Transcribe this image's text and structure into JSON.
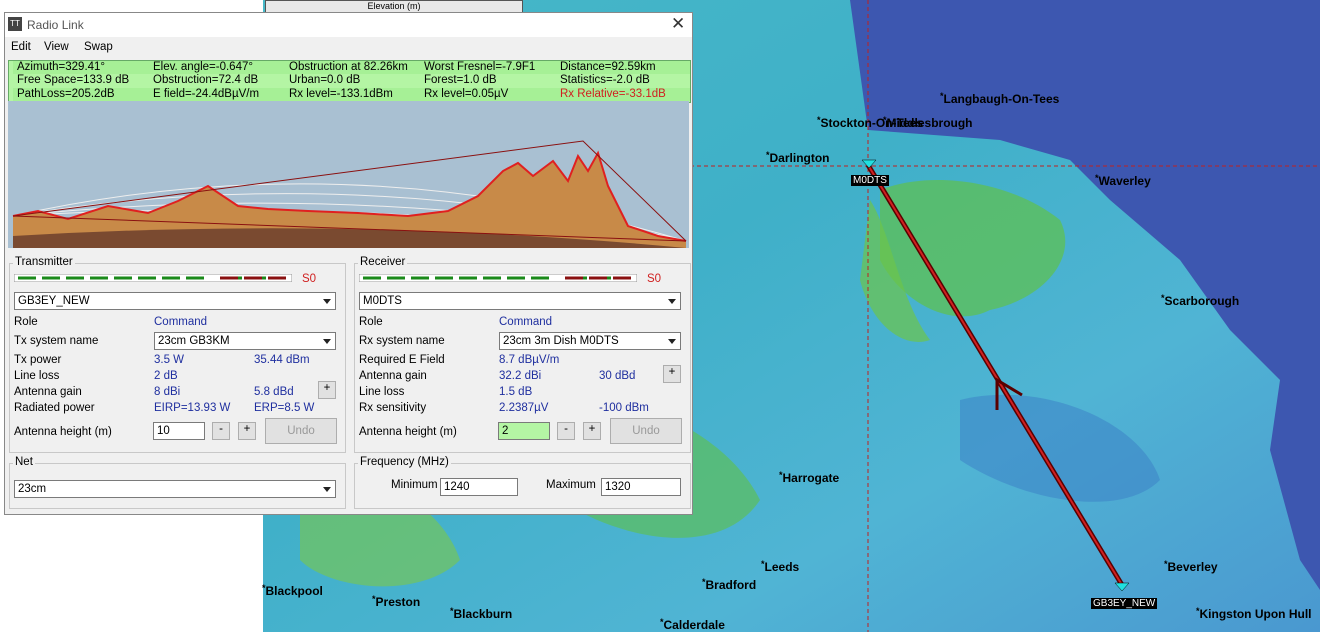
{
  "elevation_tab": "Elevation (m)",
  "window": {
    "title": "Radio Link",
    "menu": [
      "Edit",
      "View",
      "Swap"
    ]
  },
  "stats": [
    [
      "Azimuth=329.41°",
      "Elev. angle=-0.647°",
      "Obstruction at 82.26km",
      "Worst Fresnel=-7.9F1",
      "Distance=92.59km"
    ],
    [
      "Free Space=133.9 dB",
      "Obstruction=72.4 dB",
      "Urban=0.0 dB",
      "Forest=1.0 dB",
      "Statistics=-2.0 dB"
    ],
    [
      "PathLoss=205.2dB",
      "E field=-24.4dBµV/m",
      "Rx level=-133.1dBm",
      "Rx level=0.05µV",
      "Rx Relative=-33.1dB"
    ]
  ],
  "transmitter": {
    "title": "Transmitter",
    "signal": "S0",
    "station": "GB3EY_NEW",
    "role_label": "Role",
    "role": "Command",
    "system_label": "Tx system name",
    "system": "23cm GB3KM",
    "power_label": "Tx power",
    "power_w": "3.5 W",
    "power_dbm": "35.44 dBm",
    "line_loss_label": "Line loss",
    "line_loss": "2 dB",
    "gain_label": "Antenna gain",
    "gain_dbi": "8 dBi",
    "gain_dbd": "5.8 dBd",
    "gain_button": "+",
    "radiated_label": "Radiated power",
    "eirp": "EIRP=13.93 W",
    "erp": "ERP=8.5 W",
    "height_label": "Antenna height (m)",
    "height": "10",
    "minus": "-",
    "plus": "+",
    "undo": "Undo"
  },
  "receiver": {
    "title": "Receiver",
    "signal": "S0",
    "station": "M0DTS",
    "role_label": "Role",
    "role": "Command",
    "system_label": "Rx system name",
    "system": "23cm 3m Dish M0DTS",
    "field_label": "Required E Field",
    "field": "8.7 dBµV/m",
    "gain_label": "Antenna gain",
    "gain_dbi": "32.2 dBi",
    "gain_dbd": "30 dBd",
    "gain_button": "+",
    "line_loss_label": "Line loss",
    "line_loss": "1.5 dB",
    "sensitivity_label": "Rx sensitivity",
    "sensitivity_uv": "2.2387µV",
    "sensitivity_dbm": "-100 dBm",
    "height_label": "Antenna height (m)",
    "height": "2",
    "minus": "-",
    "plus": "+",
    "undo": "Undo"
  },
  "net": {
    "title": "Net",
    "value": "23cm"
  },
  "frequency": {
    "title": "Frequency (MHz)",
    "minimum_label": "Minimum",
    "minimum": "1240",
    "maximum_label": "Maximum",
    "maximum": "1320"
  },
  "map": {
    "towns": [
      "Langbaugh-On-Tees",
      "Stockton-On-Tees",
      "Middlesbrough",
      "Darlington",
      "Waverley",
      "Scarborough",
      "Harrogate",
      "Leeds",
      "Bradford",
      "Beverley",
      "Blackpool",
      "Preston",
      "Blackburn",
      "Calderdale",
      "Kingston Upon Hull"
    ],
    "stations": [
      "M0DTS",
      "GB3EY_NEW"
    ]
  }
}
